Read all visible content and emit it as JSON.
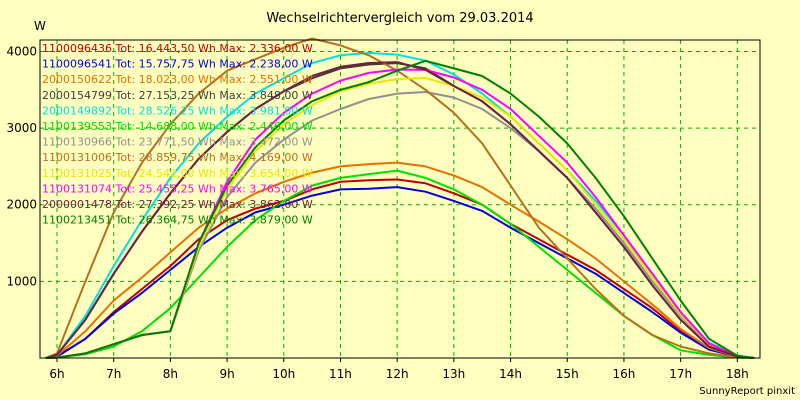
{
  "chart_data": {
    "type": "line",
    "title": "Wechselrichtervergleich vom 29.03.2014",
    "ylabel": "W",
    "xlabel": "",
    "footer": "SunnyReport pinxit",
    "x_ticks": [
      "6h",
      "7h",
      "8h",
      "9h",
      "10h",
      "11h",
      "12h",
      "13h",
      "14h",
      "15h",
      "16h",
      "17h",
      "18h"
    ],
    "y_ticks": [
      "1000",
      "2000",
      "3000",
      "4000"
    ],
    "xlim": [
      5.7,
      18.4
    ],
    "ylim": [
      0,
      4150
    ],
    "grid": true,
    "background": "#ffffc0",
    "series": [
      {
        "name": "1100096436",
        "label": "1100096436 Tot: 16.443,50 Wh Max: 2.336,00 W",
        "color": "#c00000",
        "x": [
          5.8,
          6,
          6.5,
          7,
          7.5,
          8,
          8.5,
          9,
          9.5,
          10,
          10.5,
          11,
          11.5,
          12,
          12.5,
          13,
          13.5,
          14,
          14.5,
          15,
          15.5,
          16,
          16.5,
          17,
          17.5,
          18,
          18.3
        ],
        "y": [
          0,
          20,
          250,
          600,
          900,
          1200,
          1550,
          1800,
          1950,
          2050,
          2200,
          2300,
          2320,
          2330,
          2280,
          2150,
          2000,
          1750,
          1550,
          1350,
          1150,
          900,
          650,
          350,
          120,
          20,
          0
        ]
      },
      {
        "name": "1100096541",
        "label": "1100096541 Tot: 15.757,75 Wh Max: 2.238,00 W",
        "color": "#0000e0",
        "x": [
          5.8,
          6,
          6.5,
          7,
          7.5,
          8,
          8.5,
          9,
          9.5,
          10,
          10.5,
          11,
          11.5,
          12,
          12.5,
          13,
          13.5,
          14,
          14.5,
          15,
          15.5,
          16,
          16.5,
          17,
          17.5,
          18,
          18.3
        ],
        "y": [
          0,
          20,
          250,
          580,
          850,
          1150,
          1450,
          1700,
          1900,
          2000,
          2120,
          2200,
          2210,
          2230,
          2170,
          2050,
          1920,
          1700,
          1500,
          1300,
          1100,
          850,
          600,
          330,
          110,
          20,
          0
        ]
      },
      {
        "name": "2000150622",
        "label": "2000150622 Tot: 18.023,00 Wh Max: 2.551,00 W",
        "color": "#e87000",
        "x": [
          5.8,
          6,
          6.5,
          7,
          7.5,
          8,
          8.5,
          9,
          9.5,
          10,
          10.5,
          11,
          11.5,
          12,
          12.5,
          13,
          13.5,
          14,
          14.5,
          15,
          15.5,
          16,
          16.5,
          17,
          17.5,
          18,
          18.3
        ],
        "y": [
          0,
          30,
          350,
          750,
          1050,
          1380,
          1700,
          1950,
          2150,
          2300,
          2420,
          2500,
          2530,
          2550,
          2500,
          2380,
          2230,
          2000,
          1780,
          1550,
          1300,
          1000,
          700,
          380,
          130,
          20,
          0
        ]
      },
      {
        "name": "2000154799",
        "label": "2000154799 Tot: 27.153,25 Wh Max: 3.848,00 W",
        "color": "#404040",
        "x": [
          5.8,
          6,
          6.5,
          7,
          7.5,
          8,
          8.5,
          9,
          9.5,
          10,
          10.5,
          11,
          11.5,
          12,
          12.5,
          13,
          13.5,
          14,
          14.5,
          15,
          15.5,
          16,
          16.5,
          17,
          17.5,
          18,
          18.3
        ],
        "y": [
          0,
          40,
          500,
          1100,
          1650,
          2150,
          2600,
          2950,
          3250,
          3480,
          3650,
          3780,
          3830,
          3848,
          3780,
          3550,
          3350,
          3050,
          2700,
          2350,
          1900,
          1450,
          950,
          500,
          150,
          20,
          0
        ]
      },
      {
        "name": "2000149892",
        "label": "2000149892 Tot: 28.526,25 Wh Max: 3.981,00 W",
        "color": "#00e0e0",
        "x": [
          5.8,
          6,
          6.5,
          7,
          7.5,
          8,
          8.5,
          9,
          9.5,
          10,
          10.5,
          11,
          11.5,
          12,
          12.5,
          13,
          13.5,
          14,
          14.5,
          15,
          15.5,
          16,
          16.5,
          17,
          17.5,
          18,
          18.3
        ],
        "y": [
          0,
          40,
          550,
          1200,
          1800,
          2350,
          2800,
          3150,
          3450,
          3650,
          3850,
          3950,
          3981,
          3960,
          3880,
          3700,
          3450,
          3150,
          2800,
          2450,
          2050,
          1600,
          1100,
          600,
          200,
          30,
          0
        ]
      },
      {
        "name": "1100139553",
        "label": "1100139553 Tot: 14.688,00 Wh Max: 2.446,00 W",
        "color": "#00e000",
        "x": [
          5.8,
          6,
          6.5,
          7,
          7.5,
          8,
          8.5,
          9,
          9.5,
          10,
          10.5,
          11,
          11.5,
          12,
          12.5,
          13,
          13.5,
          14,
          14.5,
          15,
          15.5,
          16,
          16.5,
          17,
          17.5,
          18,
          18.3
        ],
        "y": [
          0,
          5,
          50,
          150,
          350,
          650,
          1050,
          1450,
          1800,
          2050,
          2250,
          2350,
          2400,
          2446,
          2350,
          2200,
          2000,
          1750,
          1450,
          1150,
          850,
          550,
          300,
          100,
          40,
          5,
          0
        ]
      },
      {
        "name": "1100130966",
        "label": "1100130966 Tot: 23.771,50 Wh Max: 3.472,00 W",
        "color": "#909090",
        "x": [
          5.8,
          6,
          6.5,
          7,
          7.5,
          8,
          8.5,
          9,
          9.5,
          10,
          10.5,
          11,
          11.5,
          12,
          12.5,
          13,
          13.5,
          14,
          14.5,
          15,
          15.5,
          16,
          16.5,
          17,
          17.5,
          18,
          18.3
        ],
        "y": [
          0,
          5,
          60,
          180,
          300,
          350,
          1400,
          2100,
          2550,
          2850,
          3100,
          3250,
          3380,
          3450,
          3472,
          3400,
          3250,
          3000,
          2700,
          2350,
          1950,
          1500,
          1000,
          550,
          170,
          20,
          0
        ]
      },
      {
        "name": "1100131006",
        "label": "1100131006 Tot: 28.859,75 Wh Max: 4.169,00 W",
        "color": "#b87020",
        "x": [
          5.8,
          6,
          6.5,
          7,
          7.5,
          8,
          8.5,
          9,
          9.5,
          10,
          10.5,
          11,
          11.5,
          12,
          12.5,
          13,
          13.5,
          14,
          14.5,
          15,
          15.5,
          16,
          16.5,
          17,
          17.5,
          18,
          18.3
        ],
        "y": [
          0,
          60,
          1000,
          1900,
          2550,
          3050,
          3450,
          3750,
          3900,
          4050,
          4169,
          4080,
          3950,
          3750,
          3500,
          3200,
          2800,
          2250,
          1700,
          1300,
          900,
          550,
          300,
          150,
          60,
          10,
          0
        ]
      },
      {
        "name": "1100131025",
        "label": "1100131025 Tot: 24.542,00 Wh Max: 3.654,00 W",
        "color": "#e8e800",
        "x": [
          5.8,
          6,
          6.5,
          7,
          7.5,
          8,
          8.5,
          9,
          9.5,
          10,
          10.5,
          11,
          11.5,
          12,
          12.5,
          13,
          13.5,
          14,
          14.5,
          15,
          15.5,
          16,
          16.5,
          17,
          17.5,
          18,
          18.3
        ],
        "y": [
          0,
          5,
          60,
          180,
          300,
          350,
          1450,
          2200,
          2700,
          3050,
          3300,
          3480,
          3580,
          3640,
          3654,
          3550,
          3400,
          3150,
          2800,
          2450,
          2000,
          1550,
          1050,
          570,
          180,
          20,
          0
        ]
      },
      {
        "name": "1100131074",
        "label": "1100131074 Tot: 25.455,25 Wh Max: 3.765,00 W",
        "color": "#ff00ff",
        "x": [
          5.8,
          6,
          6.5,
          7,
          7.5,
          8,
          8.5,
          9,
          9.5,
          10,
          10.5,
          11,
          11.5,
          12,
          12.5,
          13,
          13.5,
          14,
          14.5,
          15,
          15.5,
          16,
          16.5,
          17,
          17.5,
          18,
          18.3
        ],
        "y": [
          0,
          5,
          60,
          180,
          300,
          350,
          1500,
          2300,
          2850,
          3200,
          3450,
          3620,
          3720,
          3765,
          3760,
          3660,
          3500,
          3250,
          2900,
          2550,
          2100,
          1600,
          1100,
          600,
          190,
          20,
          0
        ]
      },
      {
        "name": "2000001478",
        "label": "2000001478 Tot: 27.392,25 Wh Max: 3.862,00 W",
        "color": "#702040",
        "x": [
          5.8,
          6,
          6.5,
          7,
          7.5,
          8,
          8.5,
          9,
          9.5,
          10,
          10.5,
          11,
          11.5,
          12,
          12.5,
          13,
          13.5,
          14,
          14.5,
          15,
          15.5,
          16,
          16.5,
          17,
          17.5,
          18,
          18.3
        ],
        "y": [
          0,
          40,
          500,
          1100,
          1650,
          2150,
          2600,
          2950,
          3250,
          3480,
          3680,
          3800,
          3850,
          3862,
          3760,
          3550,
          3350,
          3050,
          2700,
          2350,
          1900,
          1450,
          950,
          500,
          150,
          20,
          0
        ]
      },
      {
        "name": "1100213451",
        "label": "1100213451 Tot: 26.364,75 Wh Max: 3.879,00 W",
        "color": "#008000",
        "x": [
          5.8,
          6,
          6.5,
          7,
          7.5,
          8,
          8.5,
          9,
          9.5,
          10,
          10.5,
          11,
          11.5,
          12,
          12.5,
          13,
          13.5,
          14,
          14.5,
          15,
          15.5,
          16,
          16.5,
          17,
          17.5,
          18,
          18.3
        ],
        "y": [
          0,
          5,
          60,
          180,
          300,
          350,
          1500,
          2250,
          2750,
          3100,
          3350,
          3500,
          3600,
          3750,
          3879,
          3780,
          3680,
          3450,
          3150,
          2800,
          2350,
          1850,
          1300,
          750,
          250,
          30,
          0
        ]
      }
    ]
  }
}
